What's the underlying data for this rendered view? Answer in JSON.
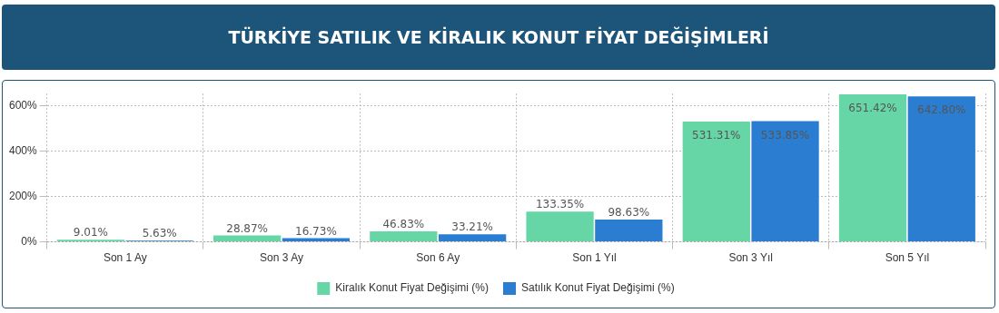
{
  "chart_data": {
    "type": "bar",
    "title": "TÜRKİYE SATILIK VE KİRALIK KONUT FİYAT DEĞİŞİMLERİ",
    "categories": [
      "Son 1 Ay",
      "Son 3 Ay",
      "Son 6 Ay",
      "Son 1 Yıl",
      "Son 3 Yıl",
      "Son 5 Yıl"
    ],
    "series": [
      {
        "name": "Kiralık Konut Fiyat Değişimi (%)",
        "color": "#66d6a6",
        "values": [
          9.01,
          28.87,
          46.83,
          133.35,
          531.31,
          651.42
        ],
        "value_labels": [
          "9.01%",
          "28.87%",
          "46.83%",
          "133.35%",
          "531.31%",
          "651.42%"
        ]
      },
      {
        "name": "Satılık Konut Fiyat Değişimi (%)",
        "color": "#2b7dd2",
        "values": [
          5.63,
          16.73,
          33.21,
          98.63,
          533.85,
          642.8
        ],
        "value_labels": [
          "5.63%",
          "16.73%",
          "33.21%",
          "98.63%",
          "533.85%",
          "642.80%"
        ]
      }
    ],
    "ylim": [
      0,
      655
    ],
    "yticks": [
      {
        "value": 0,
        "label": "0%"
      },
      {
        "value": 200,
        "label": "200%"
      },
      {
        "value": 400,
        "label": "400%"
      },
      {
        "value": 600,
        "label": "600%"
      }
    ],
    "grid": true,
    "legend": "bottom"
  }
}
